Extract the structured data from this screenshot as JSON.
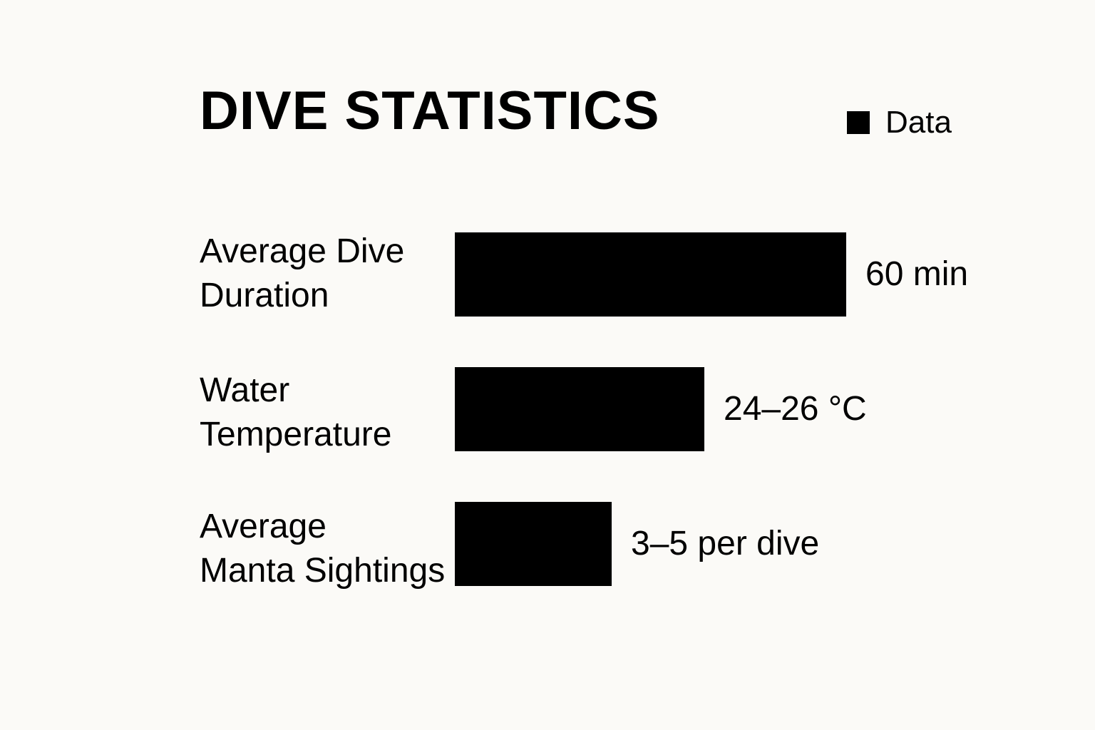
{
  "chart_data": {
    "type": "bar",
    "orientation": "horizontal",
    "title": "DIVE STATISTICS",
    "legend": {
      "position": "top-right",
      "entries": [
        "Data"
      ]
    },
    "categories": [
      "Average Dive Duration",
      "Water Temperature",
      "Average Manta Sightings"
    ],
    "category_lines": [
      [
        "Average Dive",
        "Duration"
      ],
      [
        "Water",
        "Temperature"
      ],
      [
        "Average",
        "Manta Sightings"
      ]
    ],
    "value_labels": [
      "60 min",
      "24–26 °C",
      "3–5 per dive"
    ],
    "values": [
      60,
      38.3,
      24
    ],
    "value_scale_max": 60,
    "grid": false,
    "bar_color": "#000000"
  }
}
